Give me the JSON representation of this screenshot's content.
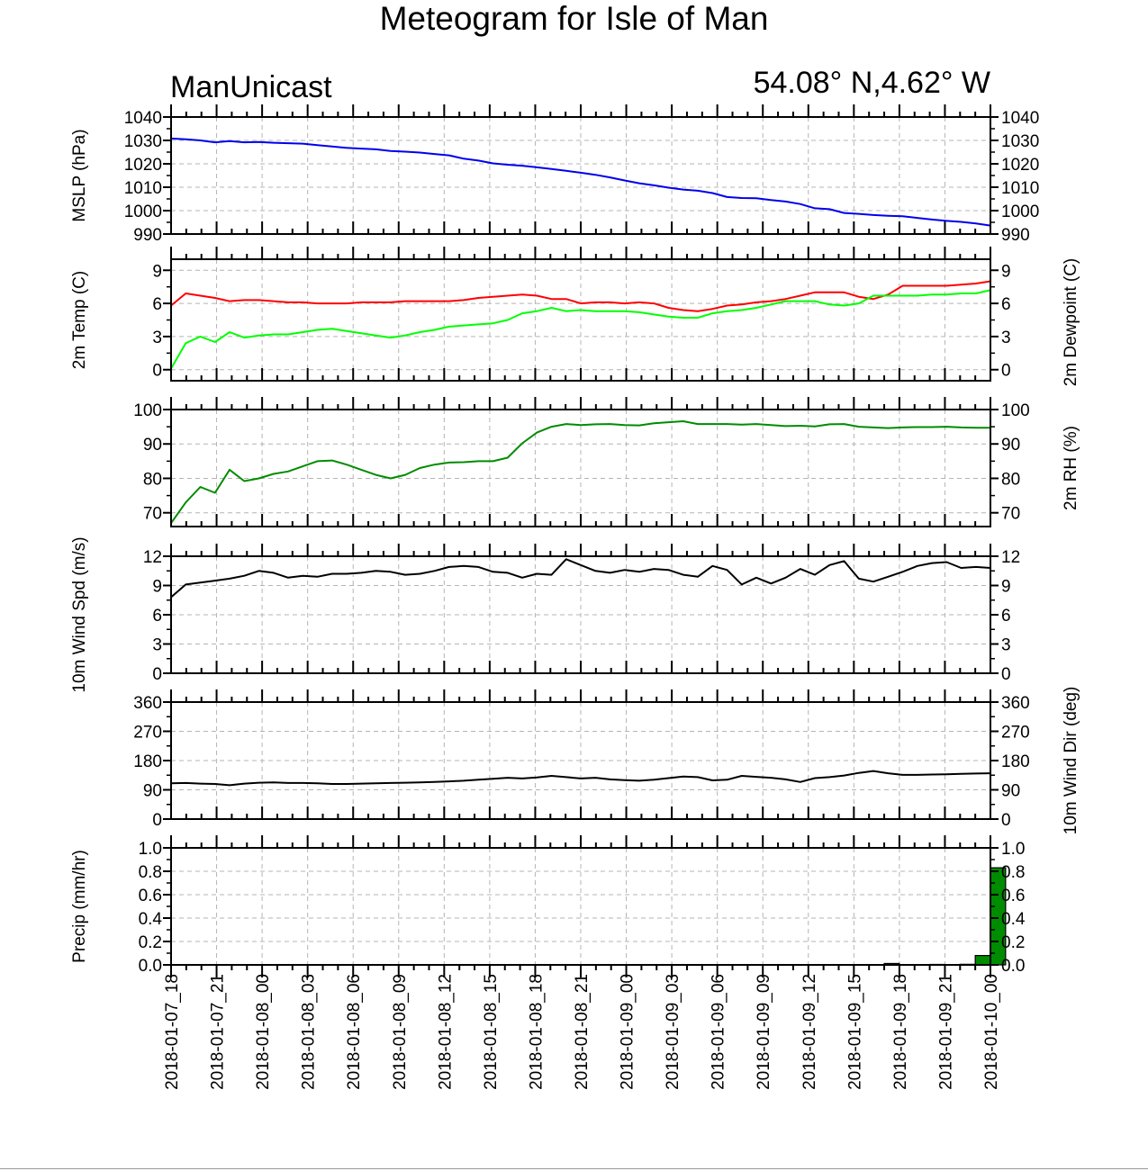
{
  "title": "Meteogram for Isle of Man",
  "model_label": "ManUnicast",
  "location_label": "54.08° N,4.62° W",
  "chart_data": [
    {
      "id": "mslp",
      "type": "line",
      "ylabel": "MSLP (hPa)",
      "ylim": [
        990,
        1040
      ],
      "yticks": [
        990,
        1000,
        1010,
        1020,
        1030,
        1040
      ],
      "right_axis_labels": true,
      "grid": true,
      "series": [
        {
          "color": "#0000ee",
          "values": [
            1030.8,
            1030.5,
            1030,
            1029.2,
            1029.7,
            1029.2,
            1029.3,
            1029,
            1028.8,
            1028.6,
            1028,
            1027.4,
            1026.8,
            1026.5,
            1026.2,
            1025.5,
            1025.2,
            1024.8,
            1024.2,
            1023.6,
            1022.2,
            1021.4,
            1020.2,
            1019.6,
            1019.2,
            1018.5,
            1017.8,
            1017,
            1016.2,
            1015.3,
            1014.2,
            1012.9,
            1011.7,
            1010.8,
            1009.8,
            1009,
            1008.5,
            1007.5,
            1005.8,
            1005.4,
            1005.3,
            1004.5,
            1003.9,
            1002.8,
            1001,
            1000.6,
            999,
            998.6,
            998.1,
            997.8,
            997.6,
            996.9,
            996.2,
            995.6,
            995.2,
            994.5,
            993.6
          ]
        }
      ]
    },
    {
      "id": "temp",
      "type": "line",
      "ylabel": "2m Temp (C)",
      "ylabel_right": "2m Dewpoint (C)",
      "ylim": [
        -1,
        10
      ],
      "yticks": [
        0,
        3,
        6,
        9
      ],
      "right_axis_labels": true,
      "grid": true,
      "series": [
        {
          "color": "#ff0000",
          "values": [
            5.8,
            6.9,
            6.7,
            6.5,
            6.2,
            6.3,
            6.3,
            6.2,
            6.1,
            6.1,
            6,
            6,
            6,
            6.1,
            6.1,
            6.1,
            6.2,
            6.2,
            6.2,
            6.2,
            6.3,
            6.5,
            6.6,
            6.7,
            6.8,
            6.7,
            6.4,
            6.4,
            6,
            6.1,
            6.1,
            6,
            6.1,
            6,
            5.6,
            5.4,
            5.3,
            5.5,
            5.8,
            5.9,
            6.1,
            6.2,
            6.4,
            6.7,
            7,
            7,
            7,
            6.6,
            6.4,
            6.8,
            7.6,
            7.6,
            7.6,
            7.6,
            7.7,
            7.8,
            8
          ]
        },
        {
          "color": "#00ff00",
          "values": [
            0.1,
            2.4,
            3,
            2.5,
            3.4,
            2.9,
            3.1,
            3.2,
            3.2,
            3.4,
            3.6,
            3.7,
            3.5,
            3.3,
            3.1,
            2.9,
            3.1,
            3.4,
            3.6,
            3.9,
            4,
            4.1,
            4.2,
            4.5,
            5.1,
            5.3,
            5.6,
            5.3,
            5.4,
            5.3,
            5.3,
            5.3,
            5.2,
            5,
            4.8,
            4.7,
            4.7,
            5.1,
            5.3,
            5.4,
            5.6,
            5.9,
            6.2,
            6.2,
            6.2,
            5.9,
            5.8,
            6,
            6.7,
            6.7,
            6.7,
            6.7,
            6.8,
            6.8,
            6.9,
            6.9,
            7.2
          ]
        }
      ]
    },
    {
      "id": "rh",
      "type": "line",
      "ylabel": "2m RH (%)",
      "ylabel_side": "right",
      "ylim": [
        66,
        100
      ],
      "yticks": [
        70,
        80,
        90,
        100
      ],
      "right_axis_labels": true,
      "grid": true,
      "series": [
        {
          "color": "#008c00",
          "values": [
            67,
            73,
            77.5,
            75.8,
            82.5,
            79.2,
            80,
            81.3,
            82,
            83.5,
            85,
            85.2,
            84,
            82.5,
            81,
            80,
            81,
            83,
            84,
            84.6,
            84.7,
            85,
            85,
            86,
            90.2,
            93.3,
            95,
            95.8,
            95.5,
            95.7,
            95.8,
            95.5,
            95.4,
            96,
            96.3,
            96.6,
            95.8,
            95.8,
            95.8,
            95.6,
            95.8,
            95.5,
            95.2,
            95.3,
            95.1,
            95.7,
            95.8,
            95,
            94.8,
            94.6,
            94.8,
            94.9,
            94.9,
            95,
            94.8,
            94.7,
            94.7
          ]
        }
      ]
    },
    {
      "id": "wspd",
      "type": "line",
      "ylabel": "10m Wind Spd (m/s)",
      "ylim": [
        0,
        12
      ],
      "yticks": [
        0,
        3,
        6,
        9,
        12
      ],
      "right_axis_labels": true,
      "grid": true,
      "series": [
        {
          "color": "#000000",
          "values": [
            7.8,
            9.1,
            9.3,
            9.5,
            9.7,
            10,
            10.5,
            10.3,
            9.8,
            10,
            9.9,
            10.2,
            10.2,
            10.3,
            10.5,
            10.4,
            10.1,
            10.2,
            10.5,
            10.9,
            11,
            10.9,
            10.4,
            10.3,
            9.8,
            10.2,
            10.1,
            11.7,
            11.1,
            10.5,
            10.3,
            10.6,
            10.4,
            10.7,
            10.6,
            10.1,
            9.9,
            11,
            10.6,
            9.1,
            9.8,
            9.2,
            9.8,
            10.7,
            10.1,
            11.1,
            11.5,
            9.7,
            9.4,
            9.9,
            10.4,
            11,
            11.3,
            11.4,
            10.8,
            10.9,
            10.8
          ]
        }
      ]
    },
    {
      "id": "wdir",
      "type": "line",
      "ylabel": "10m Wind Dir (deg)",
      "ylabel_side": "right",
      "ylim": [
        0,
        360
      ],
      "yticks": [
        0,
        90,
        180,
        270,
        360
      ],
      "right_axis_labels": true,
      "grid": true,
      "series": [
        {
          "color": "#000000",
          "values": [
            110,
            111,
            109,
            108,
            104,
            109,
            112,
            113,
            111,
            111,
            110,
            108,
            108,
            109,
            110,
            111,
            112,
            113,
            114,
            116,
            118,
            121,
            124,
            127,
            125,
            128,
            133,
            129,
            125,
            127,
            122,
            120,
            118,
            121,
            126,
            131,
            129,
            119,
            121,
            133,
            130,
            127,
            122,
            114,
            126,
            129,
            134,
            142,
            148,
            141,
            136,
            136,
            137,
            138,
            139,
            140,
            141
          ]
        }
      ]
    },
    {
      "id": "precip",
      "type": "bar",
      "ylabel": "Precip (mm/hr)",
      "ylim": [
        0,
        1
      ],
      "yticks": [
        0,
        0.2,
        0.4,
        0.6,
        0.8,
        1
      ],
      "ytick_labels": [
        "0.0",
        "0.2",
        "0.4",
        "0.6",
        "0.8",
        "1.0"
      ],
      "right_axis_labels": true,
      "grid": true,
      "bar_color": "#008c00",
      "bars": [
        {
          "hour_offset": 49.5,
          "value": 0.012
        },
        {
          "hour_offset": 52.5,
          "value": 0.004
        },
        {
          "hour_offset": 54.5,
          "value": 0.005
        },
        {
          "hour_offset": 55.5,
          "value": 0.08
        },
        {
          "hour_offset": 56.5,
          "value": 0.83
        }
      ]
    }
  ],
  "x_axis": {
    "start": "2018-01-07_18",
    "end": "2018-01-10_00",
    "hours": 54,
    "tick_labels": [
      "2018-01-07_18",
      "2018-01-07_21",
      "2018-01-08_00",
      "2018-01-08_03",
      "2018-01-08_06",
      "2018-01-08_09",
      "2018-01-08_12",
      "2018-01-08_15",
      "2018-01-08_18",
      "2018-01-08_21",
      "2018-01-09_00",
      "2018-01-09_03",
      "2018-01-09_06",
      "2018-01-09_09",
      "2018-01-09_12",
      "2018-01-09_15",
      "2018-01-09_18",
      "2018-01-09_21",
      "2018-01-10_00"
    ]
  }
}
